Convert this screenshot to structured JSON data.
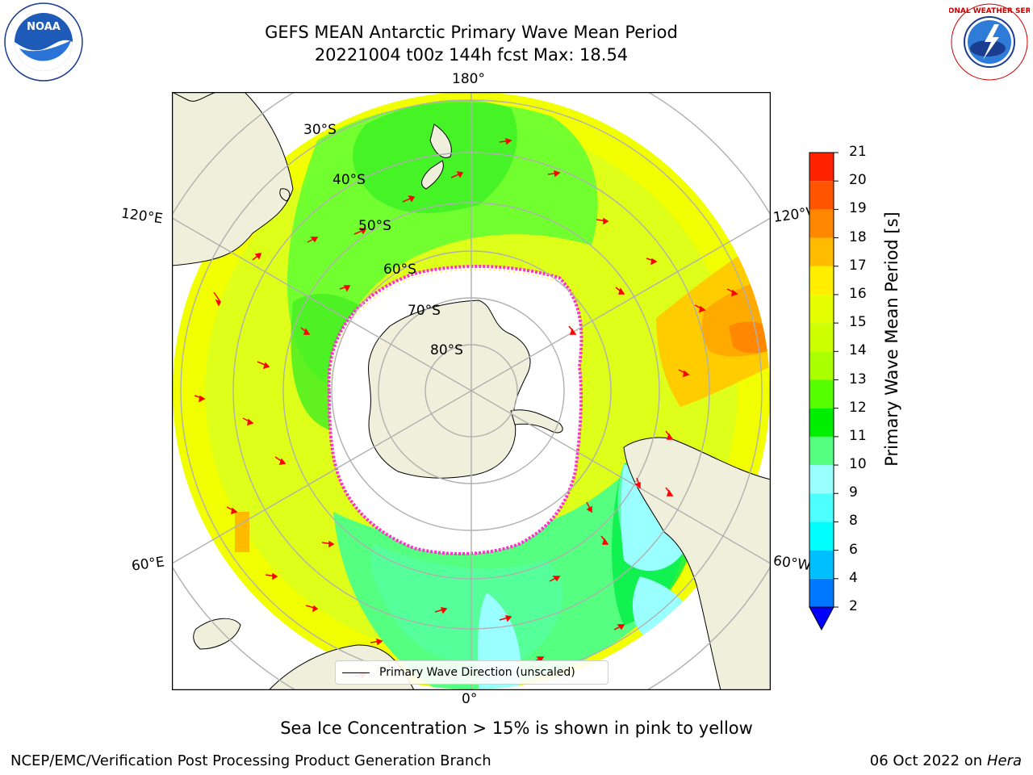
{
  "header": {
    "title_line1": "GEFS MEAN Antarctic Primary Wave Mean Period",
    "title_line2": "20221004 t00z 144h fcst   Max: 18.54"
  },
  "logos": {
    "left": "NOAA",
    "right": "NATIONAL WEATHER SERVICE"
  },
  "map": {
    "longitude_labels": {
      "top": "180°",
      "bottom": "0°",
      "upper_left": "120°E",
      "upper_right": "120°W",
      "lower_left": "60°E",
      "lower_right": "60°W"
    },
    "latitude_labels": [
      "30°S",
      "40°S",
      "50°S",
      "60°S",
      "70°S",
      "80°S"
    ],
    "legend_label": "Primary Wave Direction (unscaled)"
  },
  "colorbar": {
    "title": "Primary Wave Mean Period [s]",
    "ticks": [
      "2",
      "4",
      "6",
      "8",
      "9",
      "10",
      "11",
      "12",
      "13",
      "14",
      "15",
      "16",
      "17",
      "18",
      "19",
      "20",
      "21"
    ],
    "colors": [
      "#0077ff",
      "#00bfff",
      "#00ffff",
      "#4dffff",
      "#99ffff",
      "#55ff7f",
      "#00ee00",
      "#55ff00",
      "#aaff00",
      "#ccff00",
      "#e6ff00",
      "#ffee00",
      "#ffbb00",
      "#ff8800",
      "#ff5500",
      "#ff2200"
    ],
    "extend_color": "#0000ff"
  },
  "caption": "Sea Ice Concentration > 15% is shown in pink to yellow",
  "footer": {
    "left": "NCEP/EMC/Verification Post Processing Product Generation Branch",
    "right_date": "06 Oct 2022 on",
    "right_host": "Hera"
  }
}
